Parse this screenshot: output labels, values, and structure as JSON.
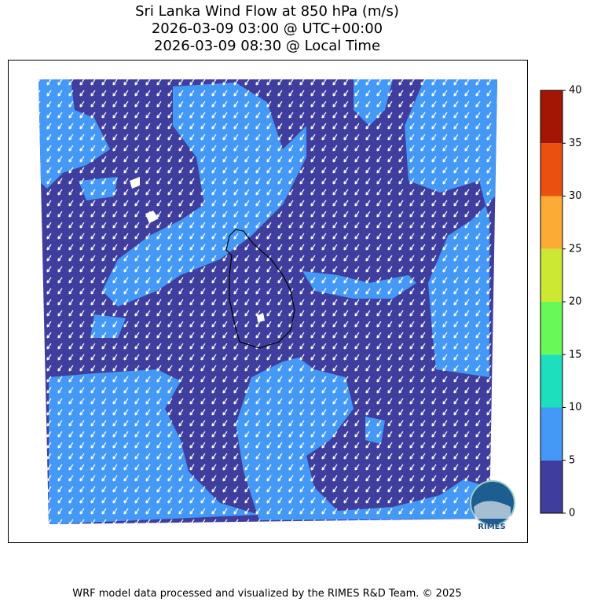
{
  "title": [
    "Sri Lanka Wind Flow at 850 hPa (m/s)",
    "2026-03-09 03:00 @ UTC+00:00",
    "2026-03-09 08:30 @ Local Time"
  ],
  "colorbar": {
    "levels": [
      0,
      5,
      10,
      15,
      20,
      25,
      30,
      35,
      40
    ],
    "colors": [
      "#3f3e9e",
      "#4499f6",
      "#1ddfbe",
      "#68f858",
      "#cde832",
      "#fcac34",
      "#ea500f",
      "#a31604"
    ]
  },
  "logo": "RIMES",
  "footer": "WRF model data processed and visualized by the RIMES R&D Team. © 2025"
}
